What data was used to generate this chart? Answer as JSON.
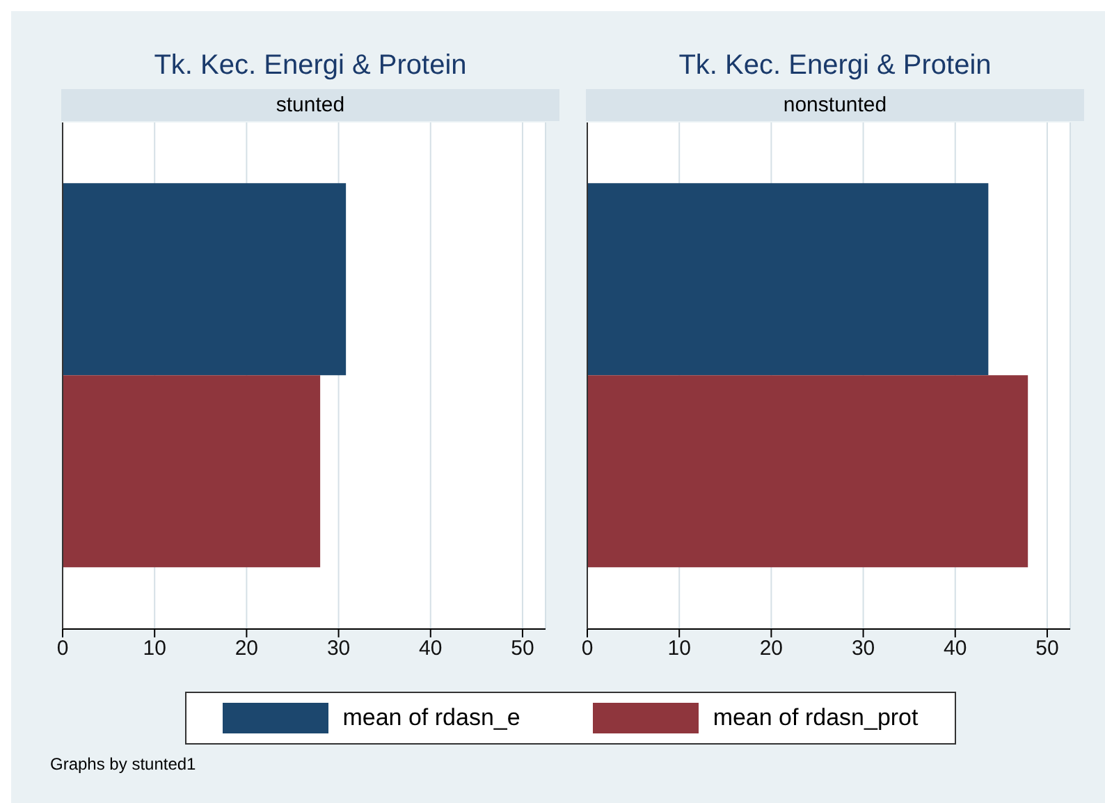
{
  "chart_data": [
    {
      "type": "bar",
      "orientation": "horizontal",
      "title": "Tk. Kec. Energi & Protein",
      "subtitle": "stunted",
      "categories": [
        null
      ],
      "series": [
        {
          "name": "mean of rdasn_e",
          "color": "#1c476e",
          "values": [
            30.8
          ]
        },
        {
          "name": "mean of rdasn_prot",
          "color": "#8f363d",
          "values": [
            28.0
          ]
        }
      ],
      "xlim": [
        0,
        52.5
      ],
      "xticks": [
        0,
        10,
        20,
        30,
        40,
        50
      ],
      "grid": "x",
      "legend": "bottom",
      "annotations": [
        "Graphs by stunted1"
      ]
    },
    {
      "type": "bar",
      "orientation": "horizontal",
      "title": "Tk. Kec. Energi & Protein",
      "subtitle": "nonstunted",
      "categories": [
        null
      ],
      "series": [
        {
          "color": "#1c476e",
          "values": [
            43.6
          ]
        },
        {
          "color": "#8f363d",
          "values": [
            47.9
          ]
        }
      ],
      "xlim": [
        0,
        52.5
      ],
      "xticks": [
        0,
        10,
        20,
        30,
        40,
        50
      ],
      "grid": "x"
    }
  ]
}
